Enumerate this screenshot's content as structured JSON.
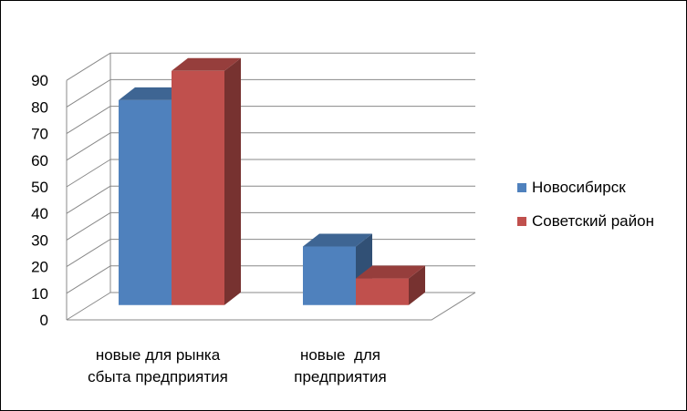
{
  "chart_data": {
    "type": "bar",
    "style": "3d-clustered-column",
    "categories": [
      [
        "новые для рынка",
        "сбыта предприятия"
      ],
      [
        "новые  для",
        "предприятия"
      ]
    ],
    "series": [
      {
        "name": "Новосибирск",
        "values": [
          77,
          22
        ],
        "color": "#4F81BD"
      },
      {
        "name": "Советский район",
        "values": [
          88,
          10
        ],
        "color": "#C0504D"
      }
    ],
    "ylim": [
      0,
      90
    ],
    "yticks": [
      0,
      10,
      20,
      30,
      40,
      50,
      60,
      70,
      80,
      90
    ],
    "grid": true,
    "legend": "right"
  }
}
